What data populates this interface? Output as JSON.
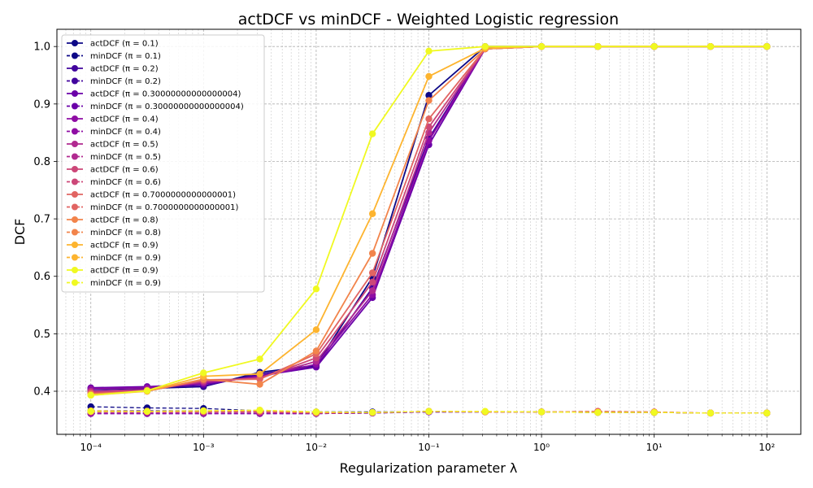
{
  "chart_data": {
    "type": "line",
    "title": "actDCF vs minDCF - Weighted Logistic regression",
    "xlabel": "Regularization parameter λ",
    "ylabel": "DCF",
    "xscale": "log",
    "xlim": [
      5e-05,
      200
    ],
    "ylim": [
      0.325,
      1.03
    ],
    "yticks": [
      "0.4",
      "0.5",
      "0.6",
      "0.7",
      "0.8",
      "0.9",
      "1.0"
    ],
    "xticks": [
      "10⁻⁴",
      "10⁻³",
      "10⁻²",
      "10⁻¹",
      "10⁰",
      "10¹",
      "10²"
    ],
    "grid": true,
    "legend_position": "upper-left",
    "x": [
      0.0001,
      0.000316,
      0.001,
      0.00316,
      0.01,
      0.0316,
      0.1,
      0.316,
      1,
      3.16,
      10,
      31.6,
      100
    ],
    "series": [
      {
        "name": "actDCF (π = 0.1)",
        "color": "#0d0887",
        "dashed": false,
        "values": [
          0.403,
          0.405,
          0.408,
          0.433,
          0.445,
          0.598,
          0.915,
          1.0,
          1.0,
          1.0,
          1.0,
          1.0,
          1.0
        ]
      },
      {
        "name": "minDCF (π = 0.1)",
        "color": "#0d0887",
        "dashed": true,
        "values": [
          0.373,
          0.371,
          0.37,
          0.366,
          0.364,
          0.364,
          0.364,
          0.364,
          0.364,
          0.363,
          0.363,
          0.362,
          0.362
        ]
      },
      {
        "name": "actDCF (π = 0.2)",
        "color": "#41049d",
        "dashed": false,
        "values": [
          0.405,
          0.407,
          0.409,
          0.43,
          0.443,
          0.58,
          0.84,
          0.997,
          1.0,
          1.0,
          1.0,
          1.0,
          1.0
        ]
      },
      {
        "name": "minDCF (π = 0.2)",
        "color": "#41049d",
        "dashed": true,
        "values": [
          0.366,
          0.366,
          0.366,
          0.364,
          0.363,
          0.363,
          0.364,
          0.364,
          0.364,
          0.363,
          0.363,
          0.362,
          0.362
        ]
      },
      {
        "name": "actDCF (π = 0.30000000000000004)",
        "color": "#6a00a8",
        "dashed": false,
        "values": [
          0.406,
          0.408,
          0.412,
          0.427,
          0.442,
          0.563,
          0.829,
          0.996,
          1.0,
          1.0,
          1.0,
          1.0,
          1.0
        ]
      },
      {
        "name": "minDCF (π = 0.30000000000000004)",
        "color": "#6a00a8",
        "dashed": true,
        "values": [
          0.361,
          0.361,
          0.361,
          0.361,
          0.361,
          0.362,
          0.364,
          0.364,
          0.364,
          0.364,
          0.363,
          0.362,
          0.362
        ]
      },
      {
        "name": "actDCF (π = 0.4)",
        "color": "#8f0da4",
        "dashed": false,
        "values": [
          0.404,
          0.406,
          0.414,
          0.425,
          0.447,
          0.568,
          0.836,
          0.996,
          1.0,
          1.0,
          1.0,
          1.0,
          1.0
        ]
      },
      {
        "name": "minDCF (π = 0.4)",
        "color": "#8f0da4",
        "dashed": true,
        "values": [
          0.361,
          0.361,
          0.361,
          0.361,
          0.361,
          0.362,
          0.364,
          0.364,
          0.364,
          0.364,
          0.363,
          0.362,
          0.362
        ]
      },
      {
        "name": "actDCF (π = 0.5)",
        "color": "#b12a90",
        "dashed": false,
        "values": [
          0.4,
          0.403,
          0.416,
          0.424,
          0.452,
          0.575,
          0.85,
          0.996,
          1.0,
          1.0,
          1.0,
          1.0,
          1.0
        ]
      },
      {
        "name": "minDCF (π = 0.5)",
        "color": "#b12a90",
        "dashed": true,
        "values": [
          0.363,
          0.363,
          0.363,
          0.363,
          0.362,
          0.363,
          0.365,
          0.364,
          0.364,
          0.364,
          0.363,
          0.362,
          0.362
        ]
      },
      {
        "name": "actDCF (π = 0.6)",
        "color": "#cc4778",
        "dashed": false,
        "values": [
          0.398,
          0.401,
          0.418,
          0.422,
          0.458,
          0.59,
          0.86,
          0.996,
          1.0,
          1.0,
          1.0,
          1.0,
          1.0
        ]
      },
      {
        "name": "minDCF (π = 0.6)",
        "color": "#cc4778",
        "dashed": true,
        "values": [
          0.364,
          0.364,
          0.364,
          0.364,
          0.362,
          0.363,
          0.365,
          0.364,
          0.364,
          0.365,
          0.364,
          0.362,
          0.362
        ]
      },
      {
        "name": "actDCF (π = 0.7000000000000001)",
        "color": "#e16462",
        "dashed": false,
        "values": [
          0.396,
          0.4,
          0.42,
          0.421,
          0.465,
          0.606,
          0.874,
          0.996,
          1.0,
          1.0,
          1.0,
          1.0,
          1.0
        ]
      },
      {
        "name": "minDCF (π = 0.7000000000000001)",
        "color": "#e16462",
        "dashed": true,
        "values": [
          0.365,
          0.365,
          0.365,
          0.365,
          0.362,
          0.363,
          0.365,
          0.364,
          0.364,
          0.365,
          0.364,
          0.362,
          0.362
        ]
      },
      {
        "name": "actDCF (π = 0.8)",
        "color": "#f2844b",
        "dashed": false,
        "values": [
          0.395,
          0.4,
          0.421,
          0.412,
          0.47,
          0.64,
          0.906,
          0.996,
          1.0,
          1.0,
          1.0,
          1.0,
          1.0
        ]
      },
      {
        "name": "minDCF (π = 0.8)",
        "color": "#f2844b",
        "dashed": true,
        "values": [
          0.365,
          0.365,
          0.365,
          0.366,
          0.363,
          0.363,
          0.365,
          0.364,
          0.364,
          0.364,
          0.364,
          0.362,
          0.362
        ]
      },
      {
        "name": "actDCF (π = 0.9)",
        "color": "#fdb42f",
        "dashed": false,
        "values": [
          0.393,
          0.4,
          0.426,
          0.43,
          0.507,
          0.709,
          0.948,
          0.997,
          1.0,
          1.0,
          1.0,
          1.0,
          1.0
        ]
      },
      {
        "name": "minDCF (π = 0.9)",
        "color": "#fdb42f",
        "dashed": true,
        "values": [
          0.366,
          0.365,
          0.366,
          0.367,
          0.364,
          0.363,
          0.365,
          0.364,
          0.364,
          0.363,
          0.363,
          0.362,
          0.362
        ]
      },
      {
        "name": "actDCF (π = 0.9)",
        "color": "#f0f921",
        "dashed": false,
        "values": [
          0.393,
          0.401,
          0.432,
          0.456,
          0.578,
          0.848,
          0.992,
          1.0,
          1.0,
          1.0,
          1.0,
          1.0,
          1.0
        ]
      },
      {
        "name": "minDCF (π = 0.9)",
        "color": "#f0f921",
        "dashed": true,
        "values": [
          0.365,
          0.365,
          0.366,
          0.367,
          0.364,
          0.363,
          0.365,
          0.365,
          0.364,
          0.363,
          0.363,
          0.362,
          0.362
        ]
      }
    ]
  }
}
